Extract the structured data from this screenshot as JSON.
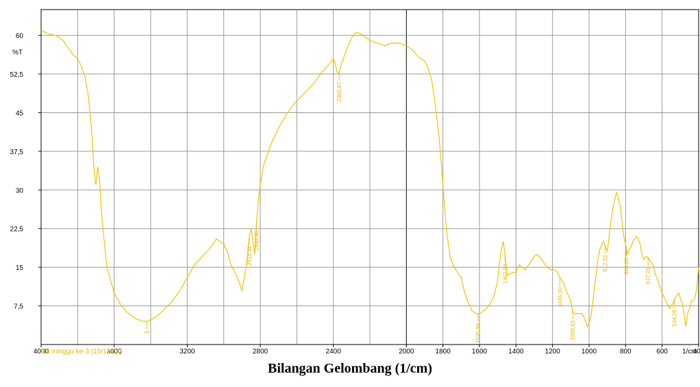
{
  "chart_data": {
    "type": "line",
    "xlabel": "Bilangan Gelombang  (1/cm)",
    "x_unit": "1/cm",
    "ylabel": "%T",
    "xlim": [
      4000,
      400
    ],
    "ylim": [
      0,
      65
    ],
    "x_ticks": [
      4000,
      3600,
      3200,
      2800,
      2400,
      2000,
      1600,
      1200,
      800,
      400
    ],
    "x_tick_labels": [
      "4000",
      "3600",
      "3200",
      "2800",
      "2400",
      "2000",
      "1800",
      "1600",
      "1400",
      "1200",
      "1000",
      "800",
      "600",
      "400"
    ],
    "x_tick_values": [
      4000,
      3600,
      3200,
      2800,
      2400,
      2000,
      1800,
      1600,
      1400,
      1200,
      1000,
      800,
      600,
      400
    ],
    "y_ticks": [
      7.5,
      15,
      22.5,
      30,
      37.5,
      45,
      52.5,
      60
    ],
    "y_tick_labels": [
      "7,5",
      "15",
      "22,5",
      "30",
      "37,5",
      "45",
      "52,5",
      "60"
    ],
    "grid": true,
    "sample_label": "B3 minggu ke-3 (15/12/14)",
    "series_color": "#f2c200",
    "series": [
      {
        "x": [
          4000,
          3960,
          3920,
          3900,
          3880,
          3860,
          3840,
          3820,
          3800,
          3780,
          3760,
          3740,
          3720,
          3710,
          3700,
          3690,
          3680,
          3670,
          3660,
          3640,
          3620,
          3600,
          3560,
          3520,
          3480,
          3440,
          3420,
          3400,
          3360,
          3320,
          3280,
          3240,
          3200,
          3160,
          3120,
          3080,
          3040,
          3000,
          2980,
          2960,
          2940,
          2920,
          2900,
          2885,
          2870,
          2860,
          2850,
          2840,
          2830,
          2820,
          2810,
          2800,
          2780,
          2740,
          2700,
          2660,
          2620,
          2580,
          2540,
          2500,
          2460,
          2420,
          2400,
          2390,
          2380,
          2370,
          2360,
          2340,
          2320,
          2300,
          2280,
          2260,
          2240,
          2200,
          2160,
          2120,
          2080,
          2040,
          2000,
          1960,
          1940,
          1920,
          1900,
          1880,
          1860,
          1840,
          1820,
          1800,
          1780,
          1760,
          1740,
          1720,
          1700,
          1680,
          1660,
          1640,
          1620,
          1600,
          1580,
          1560,
          1540,
          1520,
          1500,
          1490,
          1480,
          1470,
          1460,
          1450,
          1440,
          1420,
          1400,
          1390,
          1380,
          1370,
          1350,
          1330,
          1310,
          1290,
          1270,
          1250,
          1230,
          1210,
          1190,
          1170,
          1160,
          1150,
          1140,
          1120,
          1100,
          1090,
          1080,
          1060,
          1040,
          1030,
          1020,
          1010,
          1000,
          990,
          980,
          970,
          960,
          950,
          940,
          930,
          920,
          910,
          900,
          890,
          880,
          870,
          860,
          850,
          840,
          830,
          820,
          810,
          800,
          795,
          790,
          780,
          770,
          760,
          750,
          740,
          730,
          720,
          710,
          700,
          690,
          680,
          670,
          660,
          650,
          640,
          620,
          600,
          580,
          560,
          540,
          530,
          520,
          510,
          500,
          490,
          480,
          470,
          460,
          450,
          440,
          430,
          420,
          410,
          400
        ],
        "y": [
          61,
          60.3,
          60,
          59.5,
          59,
          58,
          57,
          56,
          55.5,
          54,
          52,
          48,
          40,
          34,
          31,
          34.5,
          32,
          26,
          22,
          15,
          12.5,
          10,
          7.5,
          6,
          5,
          4.5,
          4.5,
          4.7,
          5.7,
          7,
          8.5,
          10.5,
          13,
          15.5,
          17,
          18.5,
          20.5,
          19.5,
          18,
          15.5,
          14,
          12.5,
          10.5,
          13.5,
          17,
          21,
          22.5,
          20,
          17.5,
          24,
          28,
          31,
          35,
          39,
          42,
          44.5,
          46.5,
          48,
          49.5,
          51,
          53,
          54.5,
          55.5,
          54.5,
          53,
          52.5,
          54,
          56,
          58,
          59.5,
          60.5,
          60.5,
          60,
          59,
          58.5,
          58,
          58.5,
          58.5,
          58,
          57,
          56,
          55.5,
          55,
          53.5,
          51,
          46,
          40,
          31,
          22,
          17,
          15,
          14,
          13,
          10,
          8,
          6.5,
          6,
          6,
          6.5,
          7,
          8,
          9.5,
          12.5,
          16,
          18.5,
          20,
          17.5,
          13.5,
          13.5,
          14,
          14,
          15,
          15.5,
          15,
          14.5,
          15.5,
          16.5,
          17.5,
          17,
          16,
          15,
          14.5,
          14.5,
          14,
          13,
          12.5,
          12,
          10,
          8.5,
          6.5,
          6,
          6,
          6,
          5.5,
          4.5,
          3.5,
          4,
          5.5,
          8,
          11,
          14,
          17,
          18.5,
          19.5,
          20,
          19,
          18,
          21,
          24,
          26.5,
          28,
          29.5,
          28.5,
          27,
          24,
          21,
          19.5,
          18.5,
          17.5,
          18.5,
          19,
          20,
          20.5,
          21,
          20.5,
          19.5,
          17.5,
          16.5,
          17,
          17,
          16.5,
          16,
          15.5,
          14,
          12,
          10,
          8.5,
          7,
          8,
          9,
          9.5,
          10,
          9,
          8,
          6,
          3.5,
          6,
          7,
          8.5,
          8.5,
          9,
          11,
          15
        ]
      }
    ],
    "peak_labels": [
      {
        "x": 3420,
        "text": "3"
      },
      {
        "x": 2860,
        "text": "2918,34"
      },
      {
        "x": 2820,
        "text": "2848,86"
      },
      {
        "x": 2368,
        "text": "2360,87"
      },
      {
        "x": 1608,
        "text": "1620,99"
      },
      {
        "x": 1460,
        "text": "1462,94"
      },
      {
        "x": 1160,
        "text": "1165,00"
      },
      {
        "x": 1090,
        "text": "1099,43"
      },
      {
        "x": 912,
        "text": "912,33"
      },
      {
        "x": 796,
        "text": "800,60"
      },
      {
        "x": 677,
        "text": "677,01"
      },
      {
        "x": 534,
        "text": "534,28"
      }
    ]
  }
}
